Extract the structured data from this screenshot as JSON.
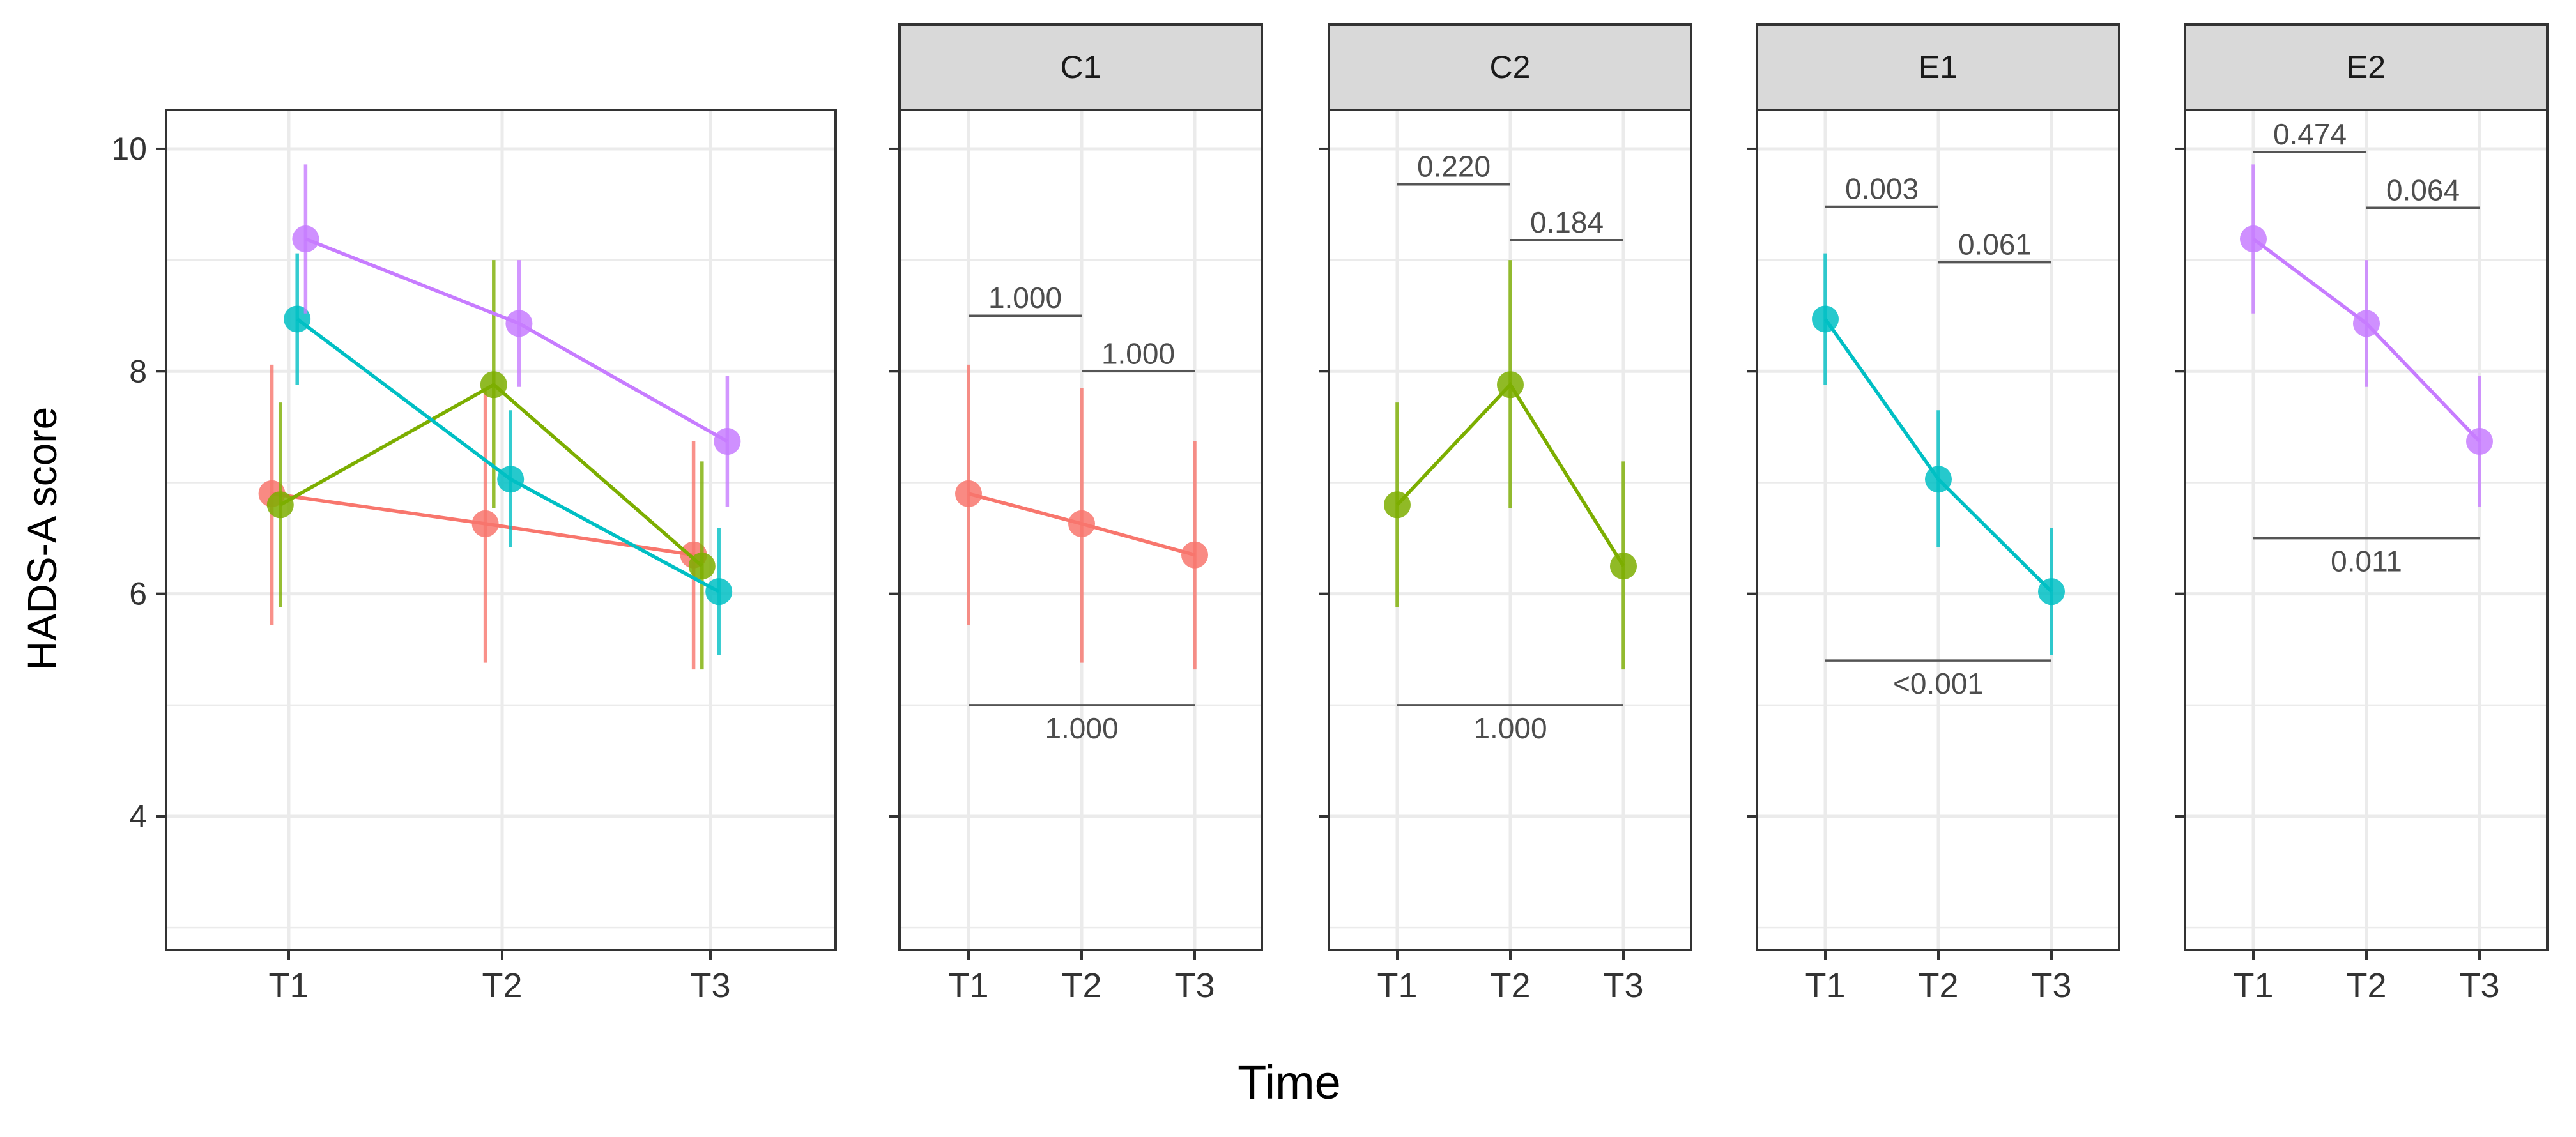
{
  "chart_data": {
    "type": "line",
    "ylabel": "HADS-A score",
    "xlabel": "Time",
    "ylim": [
      2.8,
      10.35
    ],
    "y_ticks": [
      4,
      6,
      8,
      10
    ],
    "y_tick_labels": [
      "4",
      "6",
      "8",
      "10"
    ],
    "categories": [
      "T1",
      "T2",
      "T3"
    ],
    "colors": {
      "C1": "#F8766D",
      "C2": "#7CAE00",
      "E1": "#00BFC4",
      "E2": "#C77CFF"
    },
    "combined_panel": {
      "dodge": [
        -0.04,
        -0.02,
        0.02,
        0.04
      ],
      "series_order": [
        "C1",
        "C2",
        "E1",
        "E2"
      ]
    },
    "series": [
      {
        "name": "C1",
        "values": [
          6.9,
          6.63,
          6.35
        ],
        "lower": [
          5.72,
          5.38,
          5.32
        ],
        "upper": [
          8.06,
          7.85,
          7.37
        ]
      },
      {
        "name": "C2",
        "values": [
          6.8,
          7.88,
          6.25
        ],
        "lower": [
          5.88,
          6.77,
          5.32
        ],
        "upper": [
          7.72,
          9.0,
          7.19
        ]
      },
      {
        "name": "E1",
        "values": [
          8.47,
          7.03,
          6.02
        ],
        "lower": [
          7.88,
          6.42,
          5.45
        ],
        "upper": [
          9.06,
          7.65,
          6.59
        ]
      },
      {
        "name": "E2",
        "values": [
          9.19,
          8.43,
          7.37
        ],
        "lower": [
          8.52,
          7.86,
          6.78
        ],
        "upper": [
          9.86,
          9.0,
          7.96
        ]
      }
    ],
    "facets": [
      {
        "label": "C1",
        "brackets": [
          {
            "from": 0,
            "to": 1,
            "y": 8.5,
            "label": "1.000",
            "label_pos": "above"
          },
          {
            "from": 1,
            "to": 2,
            "y": 8.0,
            "label": "1.000",
            "label_pos": "above"
          },
          {
            "from": 0,
            "to": 2,
            "y": 5.0,
            "label": "1.000",
            "label_pos": "below"
          }
        ]
      },
      {
        "label": "C2",
        "brackets": [
          {
            "from": 0,
            "to": 1,
            "y": 9.68,
            "label": "0.220",
            "label_pos": "above"
          },
          {
            "from": 1,
            "to": 2,
            "y": 9.18,
            "label": "0.184",
            "label_pos": "above"
          },
          {
            "from": 0,
            "to": 2,
            "y": 5.0,
            "label": "1.000",
            "label_pos": "below"
          }
        ]
      },
      {
        "label": "E1",
        "brackets": [
          {
            "from": 0,
            "to": 1,
            "y": 9.48,
            "label": "0.003",
            "label_pos": "above"
          },
          {
            "from": 1,
            "to": 2,
            "y": 8.98,
            "label": "0.061",
            "label_pos": "above"
          },
          {
            "from": 0,
            "to": 2,
            "y": 5.4,
            "label": "<0.001",
            "label_pos": "below"
          }
        ]
      },
      {
        "label": "E2",
        "brackets": [
          {
            "from": 0,
            "to": 1,
            "y": 9.97,
            "label": "0.474",
            "label_pos": "above"
          },
          {
            "from": 1,
            "to": 2,
            "y": 9.47,
            "label": "0.064",
            "label_pos": "above"
          },
          {
            "from": 0,
            "to": 2,
            "y": 6.5,
            "label": "0.011",
            "label_pos": "below"
          }
        ]
      }
    ]
  }
}
